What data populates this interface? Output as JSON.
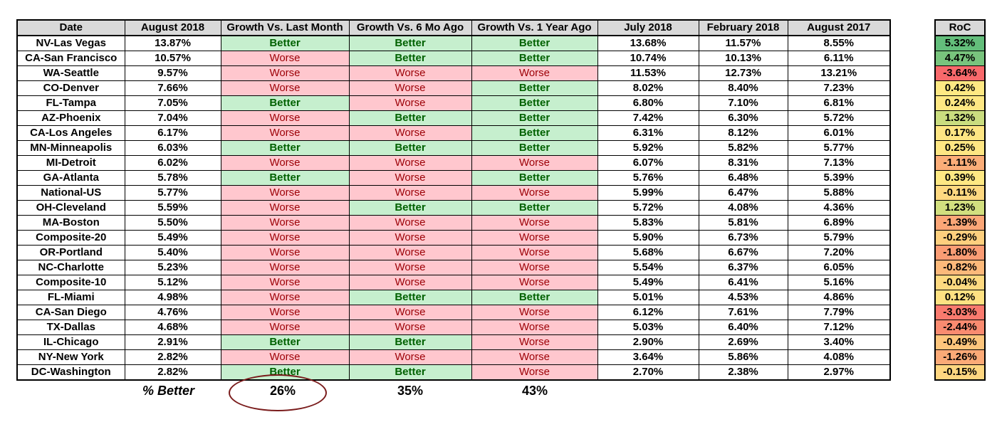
{
  "headers": [
    "Date",
    "August 2018",
    "Growth Vs. Last Month",
    "Growth Vs. 6 Mo Ago",
    "Growth Vs. 1 Year Ago",
    "July 2018",
    "February 2018",
    "August 2017"
  ],
  "rows": [
    {
      "city": "NV-Las Vegas",
      "aug2018": "13.87%",
      "vs_last": "Better",
      "vs_6mo": "Better",
      "vs_1yr": "Better",
      "jul2018": "13.68%",
      "feb2018": "11.57%",
      "aug2017": "8.55%"
    },
    {
      "city": "CA-San Francisco",
      "aug2018": "10.57%",
      "vs_last": "Worse",
      "vs_6mo": "Better",
      "vs_1yr": "Better",
      "jul2018": "10.74%",
      "feb2018": "10.13%",
      "aug2017": "6.11%"
    },
    {
      "city": "WA-Seattle",
      "aug2018": "9.57%",
      "vs_last": "Worse",
      "vs_6mo": "Worse",
      "vs_1yr": "Worse",
      "jul2018": "11.53%",
      "feb2018": "12.73%",
      "aug2017": "13.21%"
    },
    {
      "city": "CO-Denver",
      "aug2018": "7.66%",
      "vs_last": "Worse",
      "vs_6mo": "Worse",
      "vs_1yr": "Better",
      "jul2018": "8.02%",
      "feb2018": "8.40%",
      "aug2017": "7.23%"
    },
    {
      "city": "FL-Tampa",
      "aug2018": "7.05%",
      "vs_last": "Better",
      "vs_6mo": "Worse",
      "vs_1yr": "Better",
      "jul2018": "6.80%",
      "feb2018": "7.10%",
      "aug2017": "6.81%"
    },
    {
      "city": "AZ-Phoenix",
      "aug2018": "7.04%",
      "vs_last": "Worse",
      "vs_6mo": "Better",
      "vs_1yr": "Better",
      "jul2018": "7.42%",
      "feb2018": "6.30%",
      "aug2017": "5.72%"
    },
    {
      "city": "CA-Los Angeles",
      "aug2018": "6.17%",
      "vs_last": "Worse",
      "vs_6mo": "Worse",
      "vs_1yr": "Better",
      "jul2018": "6.31%",
      "feb2018": "8.12%",
      "aug2017": "6.01%"
    },
    {
      "city": "MN-Minneapolis",
      "aug2018": "6.03%",
      "vs_last": "Better",
      "vs_6mo": "Better",
      "vs_1yr": "Better",
      "jul2018": "5.92%",
      "feb2018": "5.82%",
      "aug2017": "5.77%"
    },
    {
      "city": "MI-Detroit",
      "aug2018": "6.02%",
      "vs_last": "Worse",
      "vs_6mo": "Worse",
      "vs_1yr": "Worse",
      "jul2018": "6.07%",
      "feb2018": "8.31%",
      "aug2017": "7.13%"
    },
    {
      "city": "GA-Atlanta",
      "aug2018": "5.78%",
      "vs_last": "Better",
      "vs_6mo": "Worse",
      "vs_1yr": "Better",
      "jul2018": "5.76%",
      "feb2018": "6.48%",
      "aug2017": "5.39%"
    },
    {
      "city": "National-US",
      "aug2018": "5.77%",
      "vs_last": "Worse",
      "vs_6mo": "Worse",
      "vs_1yr": "Worse",
      "jul2018": "5.99%",
      "feb2018": "6.47%",
      "aug2017": "5.88%"
    },
    {
      "city": "OH-Cleveland",
      "aug2018": "5.59%",
      "vs_last": "Worse",
      "vs_6mo": "Better",
      "vs_1yr": "Better",
      "jul2018": "5.72%",
      "feb2018": "4.08%",
      "aug2017": "4.36%"
    },
    {
      "city": "MA-Boston",
      "aug2018": "5.50%",
      "vs_last": "Worse",
      "vs_6mo": "Worse",
      "vs_1yr": "Worse",
      "jul2018": "5.83%",
      "feb2018": "5.81%",
      "aug2017": "6.89%"
    },
    {
      "city": "Composite-20",
      "aug2018": "5.49%",
      "vs_last": "Worse",
      "vs_6mo": "Worse",
      "vs_1yr": "Worse",
      "jul2018": "5.90%",
      "feb2018": "6.73%",
      "aug2017": "5.79%"
    },
    {
      "city": "OR-Portland",
      "aug2018": "5.40%",
      "vs_last": "Worse",
      "vs_6mo": "Worse",
      "vs_1yr": "Worse",
      "jul2018": "5.68%",
      "feb2018": "6.67%",
      "aug2017": "7.20%"
    },
    {
      "city": "NC-Charlotte",
      "aug2018": "5.23%",
      "vs_last": "Worse",
      "vs_6mo": "Worse",
      "vs_1yr": "Worse",
      "jul2018": "5.54%",
      "feb2018": "6.37%",
      "aug2017": "6.05%"
    },
    {
      "city": "Composite-10",
      "aug2018": "5.12%",
      "vs_last": "Worse",
      "vs_6mo": "Worse",
      "vs_1yr": "Worse",
      "jul2018": "5.49%",
      "feb2018": "6.41%",
      "aug2017": "5.16%"
    },
    {
      "city": "FL-Miami",
      "aug2018": "4.98%",
      "vs_last": "Worse",
      "vs_6mo": "Better",
      "vs_1yr": "Better",
      "jul2018": "5.01%",
      "feb2018": "4.53%",
      "aug2017": "4.86%"
    },
    {
      "city": "CA-San Diego",
      "aug2018": "4.76%",
      "vs_last": "Worse",
      "vs_6mo": "Worse",
      "vs_1yr": "Worse",
      "jul2018": "6.12%",
      "feb2018": "7.61%",
      "aug2017": "7.79%"
    },
    {
      "city": "TX-Dallas",
      "aug2018": "4.68%",
      "vs_last": "Worse",
      "vs_6mo": "Worse",
      "vs_1yr": "Worse",
      "jul2018": "5.03%",
      "feb2018": "6.40%",
      "aug2017": "7.12%"
    },
    {
      "city": "IL-Chicago",
      "aug2018": "2.91%",
      "vs_last": "Better",
      "vs_6mo": "Better",
      "vs_1yr": "Worse",
      "jul2018": "2.90%",
      "feb2018": "2.69%",
      "aug2017": "3.40%"
    },
    {
      "city": "NY-New York",
      "aug2018": "2.82%",
      "vs_last": "Worse",
      "vs_6mo": "Worse",
      "vs_1yr": "Worse",
      "jul2018": "3.64%",
      "feb2018": "5.86%",
      "aug2017": "4.08%"
    },
    {
      "city": "DC-Washington",
      "aug2018": "2.82%",
      "vs_last": "Better",
      "vs_6mo": "Better",
      "vs_1yr": "Worse",
      "jul2018": "2.70%",
      "feb2018": "2.38%",
      "aug2017": "2.97%"
    }
  ],
  "roc": {
    "header": "RoC",
    "values": [
      "5.32%",
      "4.47%",
      "-3.64%",
      "0.42%",
      "0.24%",
      "1.32%",
      "0.17%",
      "0.25%",
      "-1.11%",
      "0.39%",
      "-0.11%",
      "1.23%",
      "-1.39%",
      "-0.29%",
      "-1.80%",
      "-0.82%",
      "-0.04%",
      "0.12%",
      "-3.03%",
      "-2.44%",
      "-0.49%",
      "-1.26%",
      "-0.15%"
    ],
    "colors": [
      "#63be7b",
      "#78c47d",
      "#f8696b",
      "#fee883",
      "#fee783",
      "#cadd7f",
      "#fee583",
      "#fee683",
      "#fbad78",
      "#fee883",
      "#fed880",
      "#d2df7f",
      "#fba677",
      "#fdcf7e",
      "#fa9c74",
      "#fcb97a",
      "#fed980",
      "#fee182",
      "#f97a6e",
      "#f98b70",
      "#fdc57c",
      "#fbaa77",
      "#fed680"
    ]
  },
  "summary": {
    "label": "% Better",
    "vs_last": "26%",
    "vs_6mo": "35%",
    "vs_1yr": "43%"
  }
}
